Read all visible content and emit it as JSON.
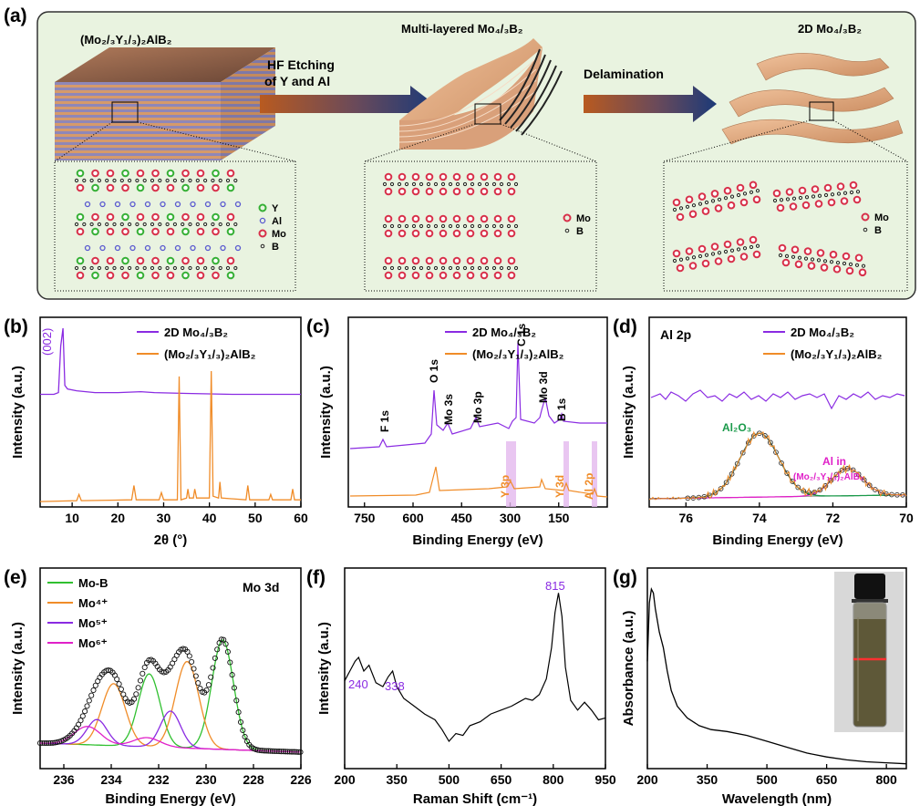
{
  "panel_a": {
    "letter": "(a)",
    "title_left": "(Mo₂/₃Y₁/₃)₂AlB₂",
    "title_mid": "Multi-layered Mo₄/₃B₂",
    "title_right": "2D Mo₄/₃B₂",
    "arrow1_line1": "HF Etching",
    "arrow1_line2": "of Y and Al",
    "arrow2": "Delamination",
    "legend_left": [
      "Y",
      "Al",
      "Mo",
      "B"
    ],
    "legend_mid": [
      "Mo",
      "B"
    ],
    "legend_right": [
      "Mo",
      "B"
    ],
    "colors": {
      "bg": "#e9f3e0",
      "Y": "#35b035",
      "Al": "#5a5ad0",
      "Mo": "#d8304a",
      "B": "#222222",
      "copper": "#d9a07a"
    }
  },
  "panel_letters": {
    "b": "(b)",
    "c": "(c)",
    "d": "(d)",
    "e": "(e)",
    "f": "(f)",
    "g": "(g)"
  },
  "chart_data": [
    {
      "panel": "b",
      "type": "line",
      "xlabel": "2θ (°)",
      "ylabel": "Intensity (a.u.)",
      "xlim": [
        3,
        60
      ],
      "xticks": [
        10,
        20,
        30,
        40,
        50,
        60
      ],
      "annotations": [
        {
          "text": "(002)",
          "x": 8
        }
      ],
      "series": [
        {
          "name": "2D Mo₄/₃B₂",
          "color": "#8a2be2",
          "points": [
            [
              3,
              0.63
            ],
            [
              6,
              0.63
            ],
            [
              7,
              0.64
            ],
            [
              7.5,
              0.9
            ],
            [
              8,
              1.0
            ],
            [
              8.4,
              0.68
            ],
            [
              9,
              0.66
            ],
            [
              11,
              0.65
            ],
            [
              15,
              0.64
            ],
            [
              20,
              0.64
            ],
            [
              25,
              0.645
            ],
            [
              28,
              0.64
            ],
            [
              35,
              0.635
            ],
            [
              45,
              0.63
            ],
            [
              55,
              0.63
            ],
            [
              60,
              0.63
            ]
          ]
        },
        {
          "name": "(Mo₂/₃Y₁/₃)₂AlB₂",
          "color": "#f08c28",
          "points": [
            [
              3,
              0.03
            ],
            [
              11,
              0.035
            ],
            [
              11.5,
              0.07
            ],
            [
              12,
              0.035
            ],
            [
              23,
              0.04
            ],
            [
              23.5,
              0.12
            ],
            [
              24,
              0.04
            ],
            [
              29,
              0.04
            ],
            [
              29.5,
              0.08
            ],
            [
              30,
              0.04
            ],
            [
              33,
              0.04
            ],
            [
              33.4,
              0.73
            ],
            [
              33.8,
              0.04
            ],
            [
              35,
              0.05
            ],
            [
              35.3,
              0.1
            ],
            [
              35.6,
              0.05
            ],
            [
              36.5,
              0.05
            ],
            [
              36.8,
              0.1
            ],
            [
              37.2,
              0.05
            ],
            [
              40,
              0.05
            ],
            [
              40.4,
              0.76
            ],
            [
              40.8,
              0.06
            ],
            [
              42,
              0.05
            ],
            [
              42.3,
              0.14
            ],
            [
              42.6,
              0.05
            ],
            [
              48,
              0.04
            ],
            [
              48.4,
              0.12
            ],
            [
              48.8,
              0.04
            ],
            [
              53,
              0.04
            ],
            [
              53.4,
              0.07
            ],
            [
              53.8,
              0.04
            ],
            [
              57.8,
              0.04
            ],
            [
              58.2,
              0.1
            ],
            [
              58.6,
              0.04
            ],
            [
              60,
              0.04
            ]
          ]
        }
      ]
    },
    {
      "panel": "c",
      "type": "line",
      "xlabel": "Binding Energy (eV)",
      "ylabel": "Intensity (a.u.)",
      "xlim": [
        800,
        0
      ],
      "xticks": [
        750,
        600,
        450,
        300,
        150
      ],
      "labels": [
        "F 1s",
        "O 1s",
        "Mo 3s",
        "Mo 3p",
        "C 1s",
        "Mo 3d",
        "B 1s"
      ],
      "highlights": [
        "Y 3p",
        "Y 3d",
        "Al 2p"
      ],
      "series": [
        {
          "name": "2D Mo₄/₃B₂",
          "color": "#8a2be2"
        },
        {
          "name": "(Mo₂/₃Y₁/₃)₂AlB₂",
          "color": "#f08c28"
        }
      ]
    },
    {
      "panel": "d",
      "type": "line",
      "title": "Al 2p",
      "xlabel": "Binding Energy (eV)",
      "ylabel": "Intensity (a.u.)",
      "xlim": [
        77,
        70
      ],
      "xticks": [
        76,
        74,
        72,
        70
      ],
      "series": [
        {
          "name": "2D Mo₄/₃B₂",
          "color": "#8a2be2"
        },
        {
          "name": "(Mo₂/₃Y₁/₃)₂AlB₂",
          "color": "#f08c28"
        }
      ],
      "peaks": [
        {
          "label": "Al₂O₃",
          "center": 74.0,
          "color": "#1a9a4a"
        },
        {
          "label_line1": "Al in",
          "label_line2": "(Mo₂/₃Y₁/₃)₂AlB₂",
          "center": 71.6,
          "color": "#e020c8"
        }
      ]
    },
    {
      "panel": "e",
      "type": "line",
      "title": "Mo 3d",
      "xlabel": "Binding Energy (eV)",
      "ylabel": "Intensity (a.u.)",
      "xlim": [
        237,
        226
      ],
      "xticks": [
        236,
        234,
        232,
        230,
        228,
        226
      ],
      "series": [
        {
          "name": "Mo-B",
          "color": "#30c030"
        },
        {
          "name": "Mo⁴⁺",
          "color": "#f08c28"
        },
        {
          "name": "Mo⁵⁺",
          "color": "#8a2be2"
        },
        {
          "name": "Mo⁶⁺",
          "color": "#e020c8"
        }
      ]
    },
    {
      "panel": "f",
      "type": "line",
      "xlabel": "Raman Shift (cm⁻¹)",
      "ylabel": "Intensity (a.u.)",
      "xlim": [
        200,
        950
      ],
      "xticks": [
        200,
        350,
        500,
        650,
        800,
        950
      ],
      "peak_labels": [
        {
          "text": "240",
          "x": 240
        },
        {
          "text": "338",
          "x": 338
        },
        {
          "text": "815",
          "x": 815
        }
      ],
      "series": [
        {
          "color": "#000000",
          "points": [
            [
              200,
              0.45
            ],
            [
              215,
              0.5
            ],
            [
              230,
              0.55
            ],
            [
              240,
              0.57
            ],
            [
              255,
              0.5
            ],
            [
              270,
              0.53
            ],
            [
              290,
              0.44
            ],
            [
              310,
              0.42
            ],
            [
              325,
              0.47
            ],
            [
              338,
              0.5
            ],
            [
              350,
              0.42
            ],
            [
              370,
              0.36
            ],
            [
              400,
              0.32
            ],
            [
              430,
              0.28
            ],
            [
              460,
              0.25
            ],
            [
              480,
              0.2
            ],
            [
              500,
              0.14
            ],
            [
              520,
              0.18
            ],
            [
              540,
              0.17
            ],
            [
              560,
              0.22
            ],
            [
              590,
              0.24
            ],
            [
              620,
              0.28
            ],
            [
              650,
              0.3
            ],
            [
              680,
              0.32
            ],
            [
              700,
              0.34
            ],
            [
              720,
              0.36
            ],
            [
              740,
              0.35
            ],
            [
              760,
              0.38
            ],
            [
              780,
              0.46
            ],
            [
              795,
              0.62
            ],
            [
              805,
              0.8
            ],
            [
              815,
              0.9
            ],
            [
              825,
              0.78
            ],
            [
              835,
              0.52
            ],
            [
              850,
              0.35
            ],
            [
              870,
              0.3
            ],
            [
              890,
              0.34
            ],
            [
              910,
              0.3
            ],
            [
              930,
              0.25
            ],
            [
              950,
              0.26
            ]
          ]
        }
      ]
    },
    {
      "panel": "g",
      "type": "line",
      "xlabel": "Wavelength (nm)",
      "ylabel": "Absorbance (a.u.)",
      "xlim": [
        200,
        850
      ],
      "xticks": [
        200,
        350,
        500,
        650,
        800
      ],
      "series": [
        {
          "color": "#000000",
          "points": [
            [
              200,
              0.55
            ],
            [
              205,
              0.85
            ],
            [
              210,
              0.92
            ],
            [
              215,
              0.9
            ],
            [
              220,
              0.82
            ],
            [
              230,
              0.7
            ],
            [
              240,
              0.62
            ],
            [
              250,
              0.5
            ],
            [
              260,
              0.4
            ],
            [
              275,
              0.32
            ],
            [
              300,
              0.26
            ],
            [
              330,
              0.22
            ],
            [
              360,
              0.2
            ],
            [
              400,
              0.19
            ],
            [
              450,
              0.17
            ],
            [
              500,
              0.14
            ],
            [
              550,
              0.11
            ],
            [
              600,
              0.08
            ],
            [
              650,
              0.06
            ],
            [
              700,
              0.045
            ],
            [
              750,
              0.035
            ],
            [
              800,
              0.03
            ],
            [
              850,
              0.025
            ]
          ]
        }
      ]
    }
  ]
}
